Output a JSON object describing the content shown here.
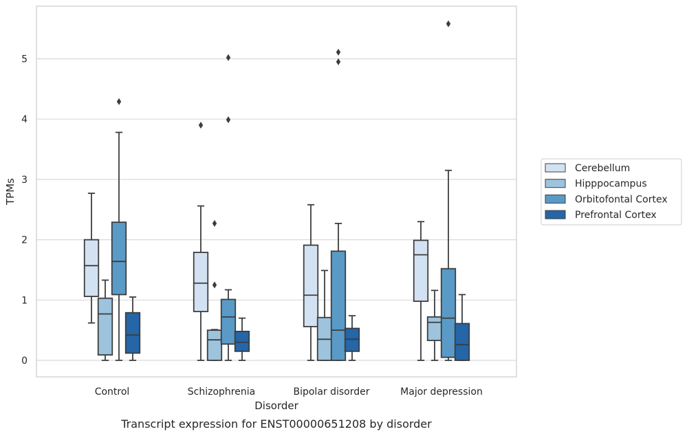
{
  "chart_data": {
    "type": "box",
    "xlabel": "Disorder",
    "ylabel": "TPMs",
    "caption": "Transcript expression for ENST00000651208 by disorder",
    "ylim": [
      -0.27,
      5.87
    ],
    "yticks": [
      0,
      1,
      2,
      3,
      4,
      5
    ],
    "grid": "horizontal",
    "legend_position": "right",
    "categories": [
      "Control",
      "Schizophrenia",
      "Bipolar disorder",
      "Major depression"
    ],
    "series": [
      {
        "name": "Cerebellum",
        "color": "#d3e2f2",
        "boxes": [
          {
            "whisker_low": 0.62,
            "q1": 1.06,
            "median": 1.57,
            "q3": 2.0,
            "whisker_high": 2.77,
            "outliers": []
          },
          {
            "whisker_low": 0.0,
            "q1": 0.81,
            "median": 1.28,
            "q3": 1.79,
            "whisker_high": 2.56,
            "outliers": [
              3.9
            ]
          },
          {
            "whisker_low": 0.0,
            "q1": 0.56,
            "median": 1.08,
            "q3": 1.91,
            "whisker_high": 2.58,
            "outliers": []
          },
          {
            "whisker_low": 0.0,
            "q1": 0.98,
            "median": 1.75,
            "q3": 1.99,
            "whisker_high": 2.3,
            "outliers": []
          }
        ]
      },
      {
        "name": "Hipppocampus",
        "color": "#9dc3dd",
        "boxes": [
          {
            "whisker_low": 0.0,
            "q1": 0.09,
            "median": 0.77,
            "q3": 1.03,
            "whisker_high": 1.33,
            "outliers": []
          },
          {
            "whisker_low": 0.0,
            "q1": 0.0,
            "median": 0.34,
            "q3": 0.5,
            "whisker_high": 0.51,
            "outliers": [
              1.25,
              2.27
            ]
          },
          {
            "whisker_low": 0.0,
            "q1": 0.0,
            "median": 0.35,
            "q3": 0.71,
            "whisker_high": 1.49,
            "outliers": []
          },
          {
            "whisker_low": 0.0,
            "q1": 0.33,
            "median": 0.63,
            "q3": 0.72,
            "whisker_high": 1.16,
            "outliers": []
          }
        ]
      },
      {
        "name": "Orbitofontal Cortex",
        "color": "#5a9ac6",
        "boxes": [
          {
            "whisker_low": 0.0,
            "q1": 1.09,
            "median": 1.64,
            "q3": 2.29,
            "whisker_high": 3.78,
            "outliers": [
              4.29
            ]
          },
          {
            "whisker_low": 0.0,
            "q1": 0.27,
            "median": 0.72,
            "q3": 1.01,
            "whisker_high": 1.17,
            "outliers": [
              3.99,
              5.02
            ]
          },
          {
            "whisker_low": 0.0,
            "q1": 0.0,
            "median": 0.5,
            "q3": 1.81,
            "whisker_high": 2.27,
            "outliers": [
              4.95,
              5.11
            ]
          },
          {
            "whisker_low": 0.0,
            "q1": 0.05,
            "median": 0.7,
            "q3": 1.52,
            "whisker_high": 3.15,
            "outliers": [
              5.58
            ]
          }
        ]
      },
      {
        "name": "Prefrontal Cortex",
        "color": "#2466a8",
        "boxes": [
          {
            "whisker_low": 0.0,
            "q1": 0.12,
            "median": 0.42,
            "q3": 0.79,
            "whisker_high": 1.05,
            "outliers": []
          },
          {
            "whisker_low": 0.0,
            "q1": 0.15,
            "median": 0.3,
            "q3": 0.48,
            "whisker_high": 0.7,
            "outliers": []
          },
          {
            "whisker_low": 0.0,
            "q1": 0.15,
            "median": 0.35,
            "q3": 0.53,
            "whisker_high": 0.74,
            "outliers": []
          },
          {
            "whisker_low": 0.0,
            "q1": 0.0,
            "median": 0.26,
            "q3": 0.61,
            "whisker_high": 1.09,
            "outliers": []
          }
        ]
      }
    ]
  }
}
